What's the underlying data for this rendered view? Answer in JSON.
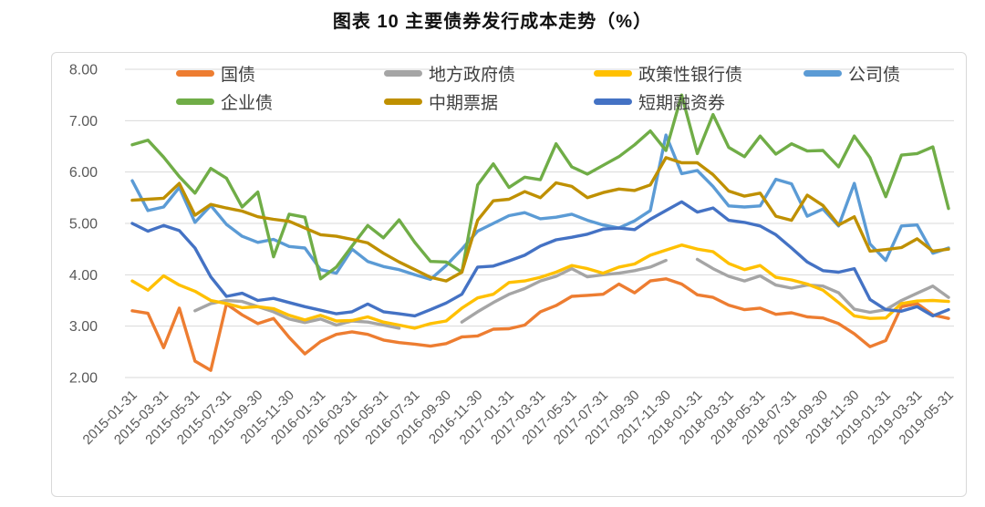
{
  "page_title": "图表 10 主要债券发行成本走势（%）",
  "chart_data": {
    "type": "line",
    "title": "图表 10 主要债券发行成本走势（%）",
    "grid": "horizontal",
    "legend_position": "top",
    "ylim": [
      2,
      8
    ],
    "y_ticks": [
      "8.00",
      "7.00",
      "6.00",
      "5.00",
      "4.00",
      "3.00",
      "2.00"
    ],
    "x_tick_step": 2,
    "x": [
      "2015-01-31",
      "2015-02-28",
      "2015-03-31",
      "2015-04-30",
      "2015-05-31",
      "2015-06-30",
      "2015-07-31",
      "2015-08-31",
      "2015-09-30",
      "2015-10-31",
      "2015-11-30",
      "2015-12-31",
      "2016-01-31",
      "2016-02-29",
      "2016-03-31",
      "2016-04-30",
      "2016-05-31",
      "2016-06-30",
      "2016-07-31",
      "2016-08-31",
      "2016-09-30",
      "2016-10-31",
      "2016-11-30",
      "2016-12-31",
      "2017-01-31",
      "2017-02-28",
      "2017-03-31",
      "2017-04-30",
      "2017-05-31",
      "2017-06-30",
      "2017-07-31",
      "2017-08-31",
      "2017-09-30",
      "2017-10-31",
      "2017-11-30",
      "2017-12-31",
      "2018-01-31",
      "2018-02-28",
      "2018-03-31",
      "2018-04-30",
      "2018-05-31",
      "2018-06-30",
      "2018-07-31",
      "2018-08-31",
      "2018-09-30",
      "2018-10-31",
      "2018-11-30",
      "2018-12-31",
      "2019-01-31",
      "2019-02-28",
      "2019-03-31",
      "2019-04-30",
      "2019-05-31"
    ],
    "series": [
      {
        "key": "guozhai",
        "name": "国债",
        "color": "#ED7D31",
        "values": [
          3.3,
          3.25,
          2.58,
          3.35,
          2.32,
          2.14,
          3.43,
          3.22,
          3.05,
          3.15,
          2.78,
          2.46,
          2.7,
          2.84,
          2.89,
          2.84,
          2.73,
          2.68,
          2.65,
          2.61,
          2.66,
          2.79,
          2.81,
          2.94,
          2.95,
          3.02,
          3.28,
          3.4,
          3.58,
          3.6,
          3.62,
          3.82,
          3.65,
          3.88,
          3.92,
          3.82,
          3.61,
          3.56,
          3.41,
          3.32,
          3.35,
          3.23,
          3.26,
          3.18,
          3.16,
          3.05,
          2.85,
          2.6,
          2.72,
          3.38,
          3.44,
          3.22,
          3.15
        ]
      },
      {
        "key": "difang-zhengfu-zhai",
        "name": "地方政府债",
        "color": "#A5A5A5",
        "values": [
          null,
          null,
          null,
          null,
          3.3,
          3.44,
          3.5,
          3.48,
          3.38,
          3.28,
          3.14,
          3.07,
          3.14,
          3.02,
          3.1,
          3.08,
          3.02,
          2.96,
          null,
          null,
          null,
          3.08,
          3.28,
          3.46,
          3.62,
          3.73,
          3.88,
          3.97,
          4.12,
          3.96,
          4.0,
          4.03,
          4.08,
          4.15,
          4.28,
          null,
          4.3,
          4.12,
          3.97,
          3.88,
          3.98,
          3.8,
          3.74,
          3.8,
          3.78,
          3.65,
          3.33,
          3.27,
          3.32,
          3.5,
          3.64,
          3.78,
          3.56
        ]
      },
      {
        "key": "zhengcexing-yinhang-zhai",
        "name": "政策性银行债",
        "color": "#FFC000",
        "values": [
          3.88,
          3.7,
          3.98,
          3.8,
          3.68,
          3.5,
          3.44,
          3.36,
          3.38,
          3.34,
          3.21,
          3.12,
          3.21,
          3.1,
          3.11,
          3.18,
          3.08,
          3.02,
          2.96,
          3.05,
          3.1,
          3.35,
          3.55,
          3.62,
          3.85,
          3.88,
          3.95,
          4.05,
          4.18,
          4.12,
          4.03,
          4.15,
          4.21,
          4.38,
          4.48,
          4.58,
          4.5,
          4.45,
          4.22,
          4.1,
          4.18,
          3.95,
          3.9,
          3.82,
          3.7,
          3.46,
          3.2,
          3.15,
          3.16,
          3.44,
          3.49,
          3.5,
          3.48
        ]
      },
      {
        "key": "gongsi-zhai",
        "name": "公司债",
        "color": "#5B9BD5",
        "values": [
          5.83,
          5.25,
          5.32,
          5.7,
          5.02,
          5.35,
          4.98,
          4.75,
          4.63,
          4.69,
          4.55,
          4.52,
          4.1,
          4.03,
          4.5,
          4.26,
          4.16,
          4.1,
          4.0,
          3.91,
          4.18,
          4.5,
          4.85,
          5.0,
          5.15,
          5.21,
          5.09,
          5.12,
          5.18,
          5.06,
          4.97,
          4.91,
          5.05,
          5.25,
          6.72,
          5.97,
          6.03,
          5.72,
          5.34,
          5.32,
          5.34,
          5.86,
          5.77,
          5.14,
          5.28,
          4.95,
          5.78,
          4.6,
          4.28,
          4.95,
          4.97,
          4.42,
          4.52
        ]
      },
      {
        "key": "qiye-zhai",
        "name": "企业债",
        "color": "#70AD47",
        "values": [
          6.53,
          6.62,
          6.29,
          5.91,
          5.59,
          6.07,
          5.88,
          5.32,
          5.61,
          4.35,
          5.18,
          5.12,
          3.92,
          4.15,
          4.56,
          4.96,
          4.72,
          5.07,
          4.63,
          4.26,
          4.25,
          4.05,
          5.75,
          6.16,
          5.7,
          5.9,
          5.85,
          6.55,
          6.1,
          5.96,
          6.13,
          6.3,
          6.53,
          6.8,
          6.42,
          7.5,
          6.36,
          7.12,
          6.48,
          6.3,
          6.7,
          6.35,
          6.55,
          6.41,
          6.42,
          6.1,
          6.7,
          6.28,
          5.52,
          6.33,
          6.36,
          6.49,
          5.29
        ]
      },
      {
        "key": "zhongqi-piaoju",
        "name": "中期票据",
        "color": "#BF9000",
        "values": [
          5.45,
          5.47,
          5.49,
          5.78,
          5.16,
          5.37,
          5.3,
          5.24,
          5.13,
          5.08,
          5.04,
          4.91,
          4.78,
          4.75,
          4.69,
          4.62,
          4.42,
          4.25,
          4.1,
          3.95,
          3.88,
          4.05,
          5.06,
          5.44,
          5.47,
          5.62,
          5.5,
          5.79,
          5.72,
          5.5,
          5.6,
          5.67,
          5.64,
          5.75,
          6.28,
          6.18,
          6.18,
          5.95,
          5.63,
          5.53,
          5.59,
          5.14,
          5.06,
          5.55,
          5.35,
          4.97,
          5.13,
          4.46,
          4.49,
          4.53,
          4.7,
          4.46,
          4.5
        ]
      },
      {
        "key": "duanqi-rongziquan",
        "name": "短期融资券",
        "color": "#4472C4",
        "values": [
          5.0,
          4.85,
          4.96,
          4.86,
          4.52,
          3.96,
          3.58,
          3.64,
          3.5,
          3.54,
          3.46,
          3.38,
          3.31,
          3.24,
          3.28,
          3.43,
          3.28,
          3.24,
          3.2,
          3.32,
          3.45,
          3.62,
          4.15,
          4.17,
          4.27,
          4.38,
          4.56,
          4.68,
          4.73,
          4.79,
          4.89,
          4.91,
          4.88,
          5.08,
          5.25,
          5.42,
          5.22,
          5.3,
          5.06,
          5.02,
          4.95,
          4.78,
          4.52,
          4.25,
          4.08,
          4.05,
          4.12,
          3.52,
          3.32,
          3.29,
          3.38,
          3.2,
          3.32
        ]
      }
    ],
    "legend_rows": [
      [
        0,
        1,
        2,
        3
      ],
      [
        4,
        5,
        6
      ]
    ]
  }
}
